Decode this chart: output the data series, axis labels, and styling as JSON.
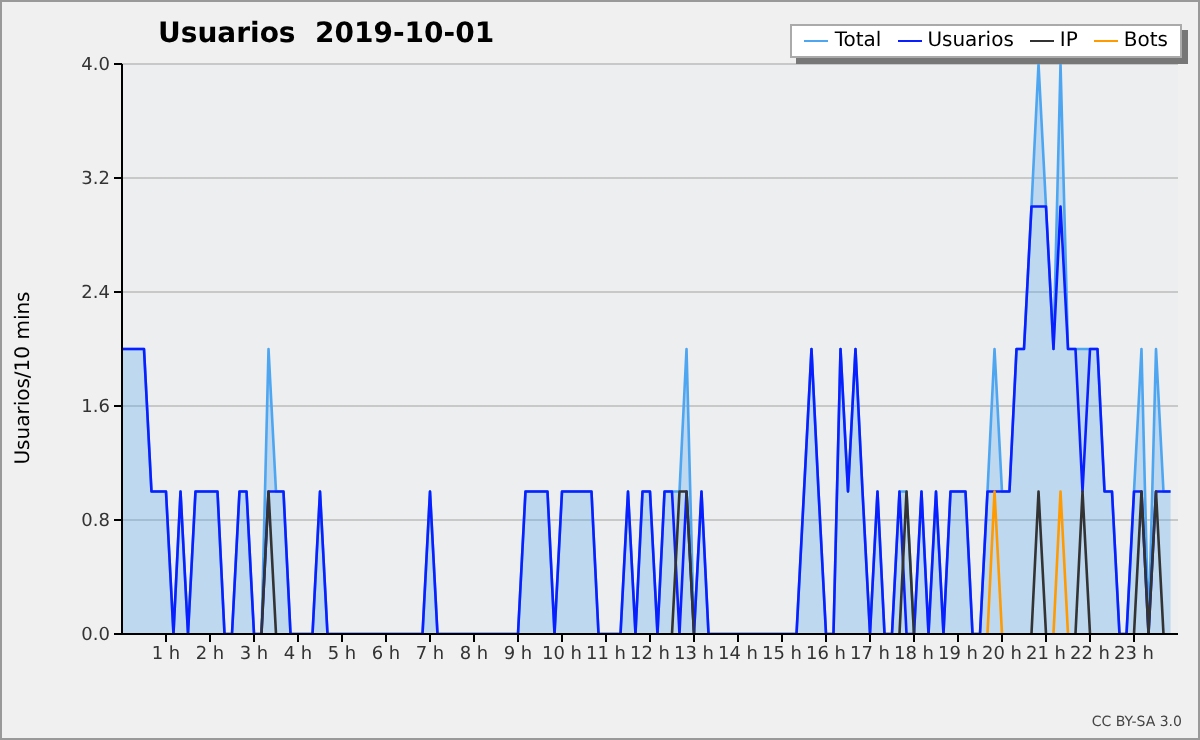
{
  "chart_data": {
    "type": "line",
    "title": "Usuarios  2019-10-01",
    "ylabel": "Usuarios/10 mins",
    "annotations": [
      "CC BY-SA 3.0"
    ],
    "x": [
      0,
      0.17,
      0.33,
      0.5,
      0.67,
      0.83,
      1,
      1.17,
      1.33,
      1.5,
      1.67,
      1.83,
      2,
      2.17,
      2.33,
      2.5,
      2.67,
      2.83,
      3,
      3.17,
      3.33,
      3.5,
      3.67,
      3.83,
      4,
      4.17,
      4.33,
      4.5,
      4.67,
      4.83,
      5,
      5.17,
      5.33,
      5.5,
      5.67,
      5.83,
      6,
      6.17,
      6.33,
      6.5,
      6.67,
      6.83,
      7,
      7.17,
      7.33,
      7.5,
      7.67,
      7.83,
      8,
      8.17,
      8.33,
      8.5,
      8.67,
      8.83,
      9,
      9.17,
      9.33,
      9.5,
      9.67,
      9.83,
      10,
      10.17,
      10.33,
      10.5,
      10.67,
      10.83,
      11,
      11.17,
      11.33,
      11.5,
      11.67,
      11.83,
      12,
      12.17,
      12.33,
      12.5,
      12.67,
      12.83,
      13,
      13.17,
      13.33,
      13.5,
      13.67,
      13.83,
      14,
      14.17,
      14.33,
      14.5,
      14.67,
      14.83,
      15,
      15.17,
      15.33,
      15.5,
      15.67,
      15.83,
      16,
      16.17,
      16.33,
      16.5,
      16.67,
      16.83,
      17,
      17.17,
      17.33,
      17.5,
      17.67,
      17.83,
      18,
      18.17,
      18.33,
      18.5,
      18.67,
      18.83,
      19,
      19.17,
      19.33,
      19.5,
      19.67,
      19.83,
      20,
      20.17,
      20.33,
      20.5,
      20.67,
      20.83,
      21,
      21.17,
      21.33,
      21.5,
      21.67,
      21.83,
      22,
      22.17,
      22.33,
      22.5,
      22.67,
      22.83,
      23,
      23.17,
      23.33,
      23.5,
      23.67,
      23.83
    ],
    "series": [
      {
        "name": "Total",
        "type": "area",
        "color": "#4ea5f0",
        "values": [
          2,
          2,
          2,
          2,
          1,
          1,
          1,
          0,
          1,
          0,
          1,
          1,
          1,
          1,
          0,
          0,
          1,
          1,
          0,
          0,
          2,
          1,
          1,
          0,
          0,
          0,
          0,
          1,
          0,
          0,
          0,
          0,
          0,
          0,
          0,
          0,
          0,
          0,
          0,
          0,
          0,
          0,
          1,
          0,
          0,
          0,
          0,
          0,
          0,
          0,
          0,
          0,
          0,
          0,
          0,
          1,
          1,
          1,
          1,
          0,
          1,
          1,
          1,
          1,
          1,
          0,
          0,
          0,
          0,
          1,
          0,
          1,
          1,
          0,
          1,
          1,
          1,
          2,
          0,
          1,
          0,
          0,
          0,
          0,
          0,
          0,
          0,
          0,
          0,
          0,
          0,
          0,
          0,
          1,
          2,
          1,
          0,
          0,
          2,
          1,
          2,
          1,
          0,
          1,
          0,
          0,
          1,
          1,
          0,
          1,
          0,
          1,
          0,
          1,
          1,
          1,
          0,
          0,
          1,
          2,
          1,
          1,
          2,
          2,
          3,
          4,
          3,
          2,
          4,
          2,
          2,
          2,
          2,
          2,
          1,
          1,
          0,
          0,
          1,
          2,
          0,
          2,
          1,
          1
        ]
      },
      {
        "name": "Usuarios",
        "type": "line",
        "color": "#0a1fff",
        "values": [
          2,
          2,
          2,
          2,
          1,
          1,
          1,
          0,
          1,
          0,
          1,
          1,
          1,
          1,
          0,
          0,
          1,
          1,
          0,
          0,
          1,
          1,
          1,
          0,
          0,
          0,
          0,
          1,
          0,
          0,
          0,
          0,
          0,
          0,
          0,
          0,
          0,
          0,
          0,
          0,
          0,
          0,
          1,
          0,
          0,
          0,
          0,
          0,
          0,
          0,
          0,
          0,
          0,
          0,
          0,
          1,
          1,
          1,
          1,
          0,
          1,
          1,
          1,
          1,
          1,
          0,
          0,
          0,
          0,
          1,
          0,
          1,
          1,
          0,
          1,
          1,
          0,
          1,
          0,
          1,
          0,
          0,
          0,
          0,
          0,
          0,
          0,
          0,
          0,
          0,
          0,
          0,
          0,
          1,
          2,
          1,
          0,
          0,
          2,
          1,
          2,
          1,
          0,
          1,
          0,
          0,
          1,
          0,
          0,
          1,
          0,
          1,
          0,
          1,
          1,
          1,
          0,
          0,
          1,
          1,
          1,
          1,
          2,
          2,
          3,
          3,
          3,
          2,
          3,
          2,
          2,
          1,
          2,
          2,
          1,
          1,
          0,
          0,
          1,
          1,
          0,
          1,
          1,
          1
        ]
      },
      {
        "name": "IP",
        "type": "line",
        "color": "#333333",
        "values": [
          null,
          null,
          null,
          null,
          null,
          null,
          null,
          null,
          null,
          null,
          null,
          null,
          null,
          null,
          null,
          null,
          null,
          null,
          null,
          0,
          1,
          0,
          null,
          null,
          null,
          null,
          null,
          null,
          null,
          null,
          null,
          null,
          null,
          null,
          null,
          null,
          null,
          null,
          null,
          null,
          null,
          null,
          null,
          null,
          null,
          null,
          null,
          null,
          null,
          null,
          null,
          null,
          null,
          null,
          null,
          null,
          null,
          null,
          null,
          null,
          null,
          null,
          null,
          null,
          null,
          null,
          null,
          null,
          null,
          null,
          null,
          null,
          null,
          null,
          null,
          0,
          1,
          1,
          0,
          null,
          null,
          null,
          null,
          null,
          null,
          null,
          null,
          null,
          null,
          null,
          null,
          null,
          null,
          null,
          null,
          null,
          null,
          null,
          null,
          null,
          null,
          null,
          null,
          null,
          null,
          null,
          0,
          1,
          0,
          null,
          null,
          null,
          null,
          null,
          null,
          null,
          null,
          null,
          null,
          null,
          null,
          null,
          null,
          null,
          0,
          1,
          0,
          null,
          null,
          null,
          0,
          1,
          0,
          null,
          null,
          null,
          null,
          null,
          0,
          1,
          0,
          1,
          0,
          null
        ]
      },
      {
        "name": "Bots",
        "type": "line",
        "color": "#ff9a00",
        "values": [
          null,
          null,
          null,
          null,
          null,
          null,
          null,
          null,
          null,
          null,
          null,
          null,
          null,
          null,
          null,
          null,
          null,
          null,
          null,
          null,
          null,
          null,
          null,
          null,
          null,
          null,
          null,
          null,
          null,
          null,
          null,
          null,
          null,
          null,
          null,
          null,
          null,
          null,
          null,
          null,
          null,
          null,
          null,
          null,
          null,
          null,
          null,
          null,
          null,
          null,
          null,
          null,
          null,
          null,
          null,
          null,
          null,
          null,
          null,
          null,
          null,
          null,
          null,
          null,
          null,
          null,
          null,
          null,
          null,
          null,
          null,
          null,
          null,
          null,
          null,
          null,
          null,
          null,
          null,
          null,
          null,
          null,
          null,
          null,
          null,
          null,
          null,
          null,
          null,
          null,
          null,
          null,
          null,
          null,
          null,
          null,
          null,
          null,
          null,
          null,
          null,
          null,
          null,
          null,
          null,
          null,
          null,
          null,
          null,
          null,
          null,
          null,
          null,
          null,
          null,
          null,
          null,
          null,
          0,
          1,
          0,
          null,
          null,
          null,
          null,
          null,
          null,
          0,
          1,
          0,
          null,
          null,
          null,
          null,
          null,
          null,
          null,
          null,
          null,
          null,
          null,
          null,
          null,
          null
        ]
      }
    ],
    "xlim": [
      0,
      24
    ],
    "xticks": [
      {
        "value": 1,
        "label": "1 h"
      },
      {
        "value": 2,
        "label": "2 h"
      },
      {
        "value": 3,
        "label": "3 h"
      },
      {
        "value": 4,
        "label": "4 h"
      },
      {
        "value": 5,
        "label": "5 h"
      },
      {
        "value": 6,
        "label": "6 h"
      },
      {
        "value": 7,
        "label": "7 h"
      },
      {
        "value": 8,
        "label": "8 h"
      },
      {
        "value": 9,
        "label": "9 h"
      },
      {
        "value": 10,
        "label": "10 h"
      },
      {
        "value": 11,
        "label": "11 h"
      },
      {
        "value": 12,
        "label": "12 h"
      },
      {
        "value": 13,
        "label": "13 h"
      },
      {
        "value": 14,
        "label": "14 h"
      },
      {
        "value": 15,
        "label": "15 h"
      },
      {
        "value": 16,
        "label": "16 h"
      },
      {
        "value": 17,
        "label": "17 h"
      },
      {
        "value": 18,
        "label": "18 h"
      },
      {
        "value": 19,
        "label": "19 h"
      },
      {
        "value": 20,
        "label": "20 h"
      },
      {
        "value": 21,
        "label": "21 h"
      },
      {
        "value": 22,
        "label": "22 h"
      },
      {
        "value": 23,
        "label": "23 h"
      }
    ],
    "ylim": [
      0,
      4
    ],
    "yticks": [
      {
        "value": 0,
        "label": "0.0"
      },
      {
        "value": 0.8,
        "label": "0.8"
      },
      {
        "value": 1.6,
        "label": "1.6"
      },
      {
        "value": 2.4,
        "label": "2.4"
      },
      {
        "value": 3.2,
        "label": "3.2"
      },
      {
        "value": 4,
        "label": "4.0"
      }
    ],
    "grid": "y",
    "legend": "top right",
    "marker": "none",
    "line_style": "solid"
  }
}
